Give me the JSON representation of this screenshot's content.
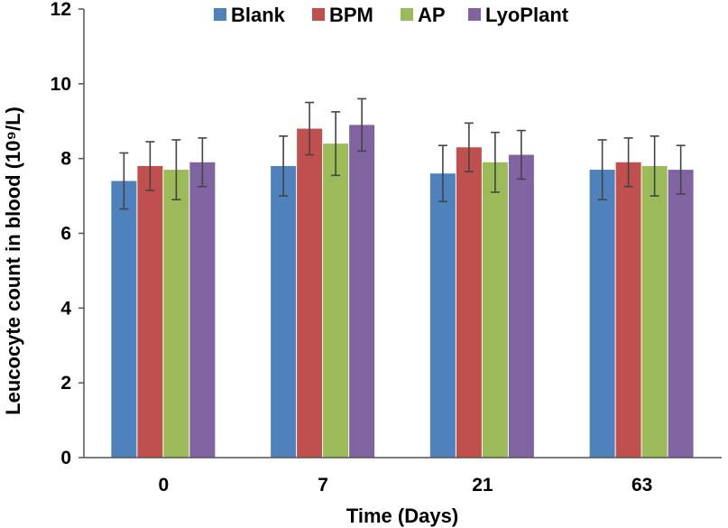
{
  "chart_data": {
    "type": "bar",
    "title": "",
    "xlabel": "Time (Days)",
    "ylabel": "Leucocyte count in blood (10⁹/L)",
    "ylim": [
      0,
      12
    ],
    "yticks": [
      "0",
      "2",
      "4",
      "6",
      "8",
      "10",
      "12"
    ],
    "categories": [
      "0",
      "7",
      "21",
      "63"
    ],
    "legend_position": "top",
    "series": [
      {
        "name": "Blank",
        "color": "#4f81bd",
        "values": [
          7.4,
          7.8,
          7.6,
          7.7
        ],
        "errors": [
          0.75,
          0.8,
          0.75,
          0.8
        ]
      },
      {
        "name": "BPM",
        "color": "#c0504d",
        "values": [
          7.8,
          8.8,
          8.3,
          7.9
        ],
        "errors": [
          0.65,
          0.7,
          0.65,
          0.65
        ]
      },
      {
        "name": "AP",
        "color": "#9bbb59",
        "values": [
          7.7,
          8.4,
          7.9,
          7.8
        ],
        "errors": [
          0.8,
          0.85,
          0.8,
          0.8
        ]
      },
      {
        "name": "LyoPlant",
        "color": "#8064a2",
        "values": [
          7.9,
          8.9,
          8.1,
          7.7
        ],
        "errors": [
          0.65,
          0.7,
          0.65,
          0.65
        ]
      }
    ]
  }
}
